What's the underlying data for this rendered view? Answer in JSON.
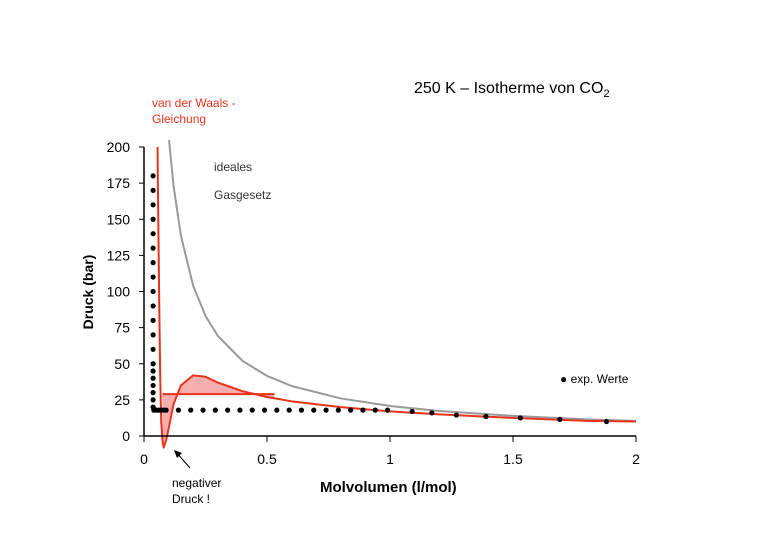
{
  "chart_data": {
    "type": "line",
    "title_main": "250 K – Isotherme von CO",
    "title_sub": "2",
    "xlabel": "Molvolumen (l/mol)",
    "ylabel": "Druck (bar)",
    "xlim": [
      0,
      2
    ],
    "ylim": [
      0,
      200
    ],
    "x_ticks": [
      "0",
      "0.5",
      "1",
      "1.5",
      "2"
    ],
    "y_ticks": [
      "0",
      "25",
      "50",
      "75",
      "100",
      "125",
      "150",
      "175",
      "200"
    ],
    "x_tick_values": [
      0,
      0.5,
      1,
      1.5,
      2
    ],
    "y_tick_values": [
      0,
      25,
      50,
      75,
      100,
      125,
      150,
      175,
      200
    ],
    "annotations": {
      "vdw": "van der Waals -\nGleichung",
      "ideal": "ideales\nGasgesetz",
      "negative": "negativer\nDruck !"
    },
    "legend": {
      "marker": "●",
      "label": "exp. Werte",
      "placement": "right"
    },
    "series": [
      {
        "name": "ideales Gasgesetz",
        "color": "#999999",
        "x": [
          0.1,
          0.12,
          0.15,
          0.2,
          0.25,
          0.3,
          0.4,
          0.5,
          0.6,
          0.8,
          1.0,
          1.2,
          1.5,
          1.8,
          2.0
        ],
        "y": [
          207.9,
          173.2,
          138.6,
          103.9,
          83.1,
          69.3,
          52.0,
          41.6,
          34.6,
          26.0,
          20.8,
          17.3,
          13.9,
          11.5,
          10.4
        ]
      },
      {
        "name": "van der Waals - Gleichung",
        "color": "#e8331c",
        "x": [
          0.055,
          0.058,
          0.062,
          0.066,
          0.07,
          0.075,
          0.08,
          0.09,
          0.1,
          0.12,
          0.15,
          0.2,
          0.25,
          0.3,
          0.35,
          0.4,
          0.5,
          0.6,
          0.8,
          1.0,
          1.2,
          1.5,
          1.8,
          2.0
        ],
        "y": [
          200,
          150,
          90,
          40,
          10,
          -3,
          -8,
          -3,
          5,
          22,
          35,
          42,
          41,
          37,
          34,
          31,
          27,
          24,
          20,
          17,
          15,
          12.5,
          10.5,
          10
        ]
      },
      {
        "name": "exp. Werte",
        "color": "#000000",
        "marker": "dot",
        "x": [
          0.037,
          0.037,
          0.037,
          0.037,
          0.037,
          0.037,
          0.037,
          0.037,
          0.037,
          0.037,
          0.037,
          0.037,
          0.037,
          0.037,
          0.037,
          0.037,
          0.037,
          0.037,
          0.037,
          0.037,
          0.04,
          0.05,
          0.06,
          0.07,
          0.08,
          0.09,
          0.14,
          0.19,
          0.24,
          0.29,
          0.34,
          0.39,
          0.44,
          0.49,
          0.54,
          0.59,
          0.64,
          0.69,
          0.74,
          0.79,
          0.84,
          0.89,
          0.94,
          0.99,
          1.09,
          1.17,
          1.27,
          1.39,
          1.53,
          1.69,
          1.88
        ],
        "y": [
          180,
          170,
          160,
          150,
          140,
          130,
          120,
          110,
          100,
          90,
          80,
          70,
          60,
          50,
          45,
          40,
          35,
          30,
          25,
          20,
          17.9,
          17.9,
          17.9,
          17.9,
          17.9,
          17.9,
          17.9,
          17.9,
          17.9,
          17.9,
          17.9,
          17.9,
          17.9,
          17.9,
          17.9,
          17.9,
          17.9,
          17.9,
          17.9,
          17.9,
          17.9,
          17.9,
          17.9,
          17.9,
          17,
          16,
          14.5,
          13.5,
          12.5,
          11.5,
          10
        ]
      }
    ],
    "shaded_regions": {
      "color": "#f4a0a0",
      "plateau_y": 29,
      "plateau_x": [
        0.075,
        0.53
      ],
      "lower_x": [
        0.075,
        0.19
      ],
      "upper_x": [
        0.19,
        0.53
      ]
    }
  }
}
